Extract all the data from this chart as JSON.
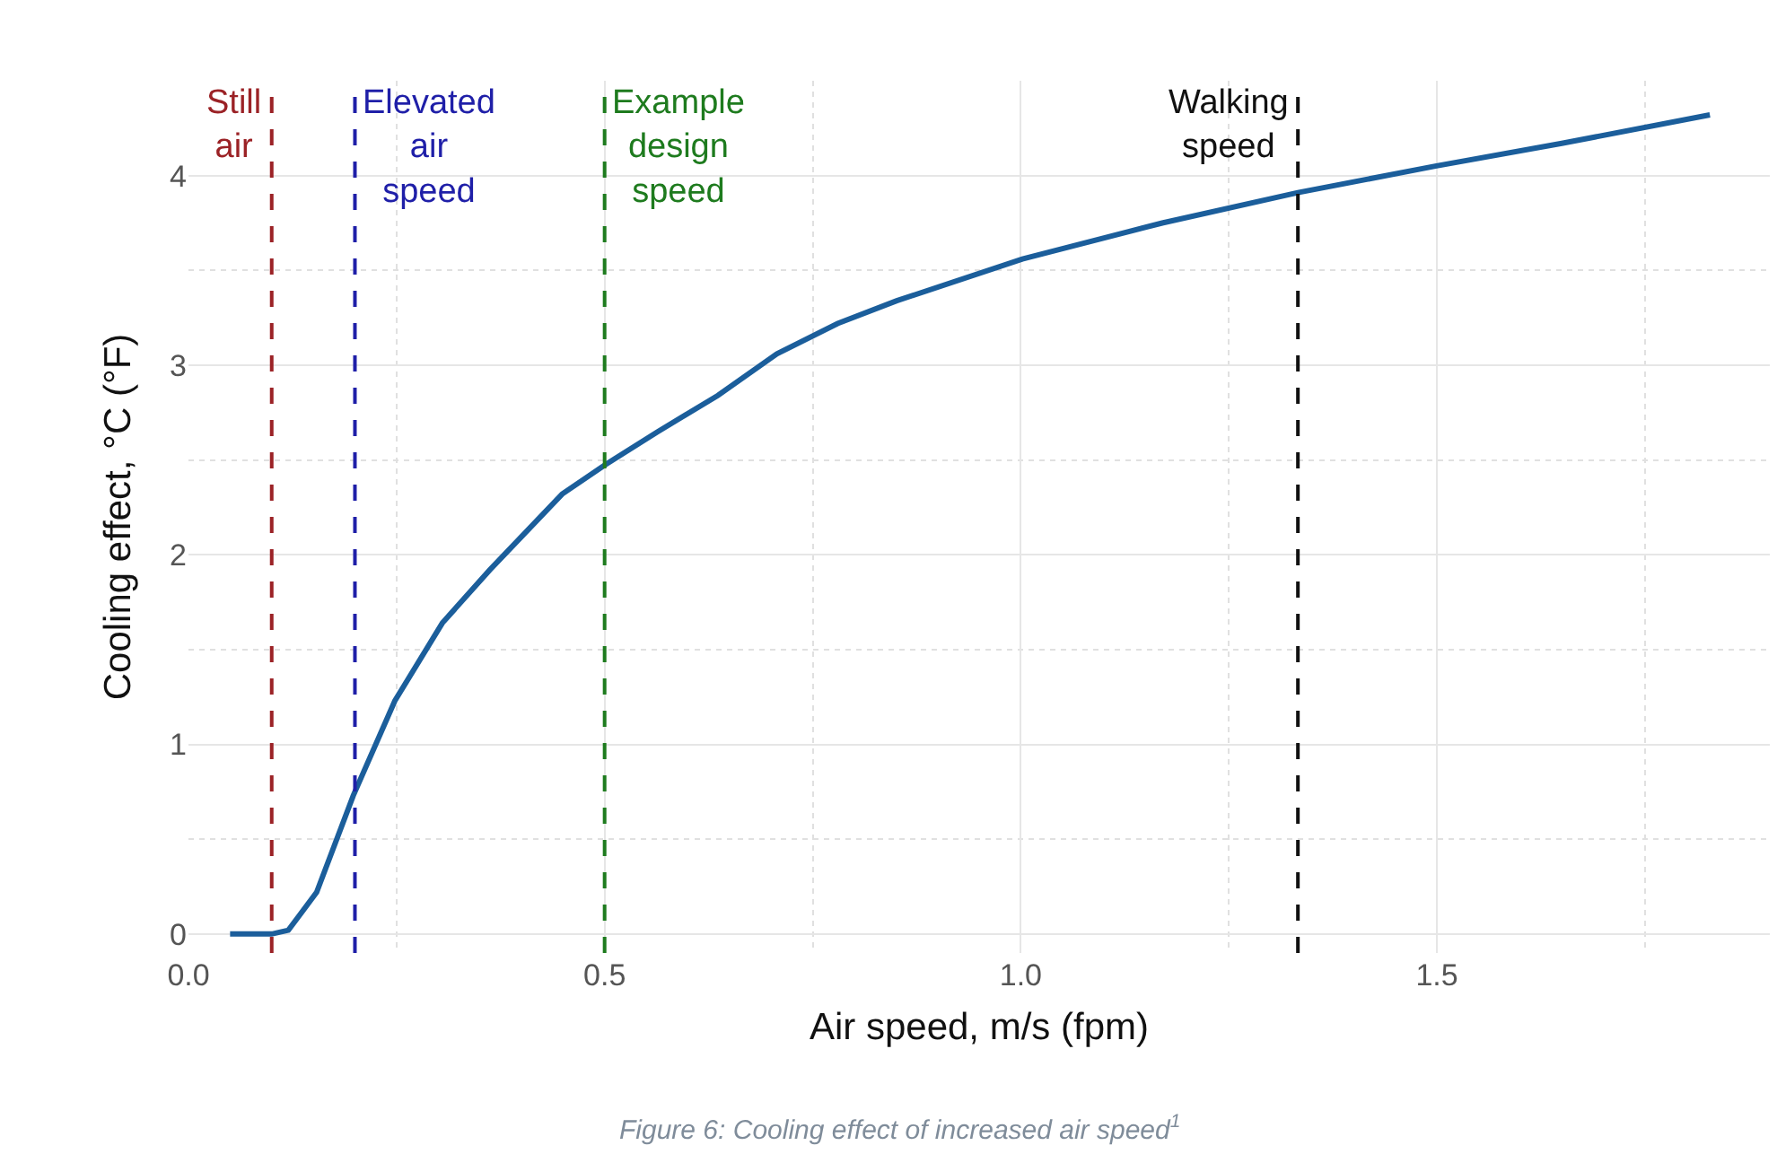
{
  "chart_data": {
    "type": "line",
    "xlabel": "Air speed, m/s (fpm)",
    "ylabel": "Cooling effect, °C (°F)",
    "x": [
      0.05,
      0.1,
      0.12,
      0.154,
      0.198,
      0.248,
      0.305,
      0.362,
      0.449,
      0.499,
      0.564,
      0.636,
      0.707,
      0.78,
      0.851,
      1.002,
      1.17,
      1.333,
      1.498,
      1.65,
      1.828
    ],
    "series": [
      {
        "color": "#1b5e9b",
        "values": [
          0,
          0,
          0.02,
          0.22,
          0.73,
          1.23,
          1.64,
          1.92,
          2.32,
          2.47,
          2.65,
          2.84,
          3.06,
          3.22,
          3.34,
          3.56,
          3.75,
          3.91,
          4.05,
          4.17,
          4.32
        ]
      }
    ],
    "xlim": [
      0,
      1.9
    ],
    "xticks": [
      {
        "value": 0,
        "label": "0.0"
      },
      0.5,
      {
        "value": 1,
        "label": "1.0"
      },
      1.5
    ],
    "ylim": [
      -0.1,
      4.5
    ],
    "yticks": [
      0,
      1,
      2,
      3,
      4
    ],
    "grid": true,
    "line_style": "solid",
    "marker": "none",
    "ref_lines": [
      {
        "axis": "x",
        "value": 0.1,
        "label": "Still\nair",
        "color": "#9b2226",
        "line_style": "dashed"
      },
      {
        "axis": "x",
        "value": 0.2,
        "label": "Elevated\nair\nspeed",
        "color": "#1f1fa8",
        "line_style": "dashed"
      },
      {
        "axis": "x",
        "value": 0.5,
        "label": "Example\ndesign\nspeed",
        "color": "#1e7b1e",
        "line_style": "dashed"
      },
      {
        "axis": "x",
        "value": 1.333,
        "label": "Walking\nspeed",
        "color": "#111111",
        "line_style": "dashed"
      }
    ],
    "annotations": [
      "Figure 6: Cooling effect of increased air speed$^{1}$"
    ]
  }
}
